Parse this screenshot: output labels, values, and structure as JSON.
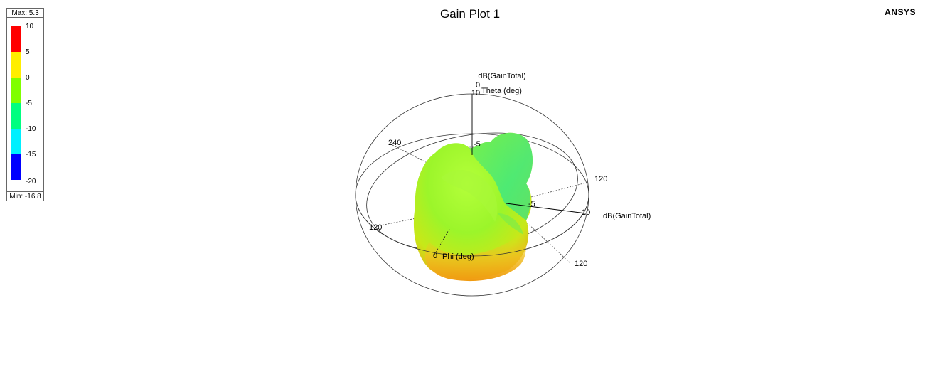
{
  "chart_data": {
    "type": "3d-polar",
    "title": "Gain Plot 1",
    "quantity": "dB(GainTotal)",
    "axes": {
      "theta_label": "Theta (deg)",
      "phi_label": "Phi (deg)",
      "radial_label": "dB(GainTotal)",
      "theta_tick": "0",
      "phi_tick": "0"
    },
    "radial_ticks": [
      "10",
      "-5",
      "-5",
      "10"
    ],
    "angle_ticks": [
      "240",
      "120",
      "120",
      "120"
    ],
    "colorbar": {
      "max_label": "Max: 5.3",
      "min_label": "Min: -16.8",
      "max": 5.3,
      "min": -16.8,
      "levels": [
        10,
        5,
        0,
        -5,
        -10,
        -15,
        -20
      ],
      "level_labels": [
        "10",
        "5",
        "0",
        "-5",
        "-10",
        "-15",
        "-20"
      ],
      "colors": [
        "#ff0000",
        "#ffee00",
        "#80ff00",
        "#00ff80",
        "#00f0ff",
        "#0000ff"
      ]
    }
  },
  "brand": "ANSYS"
}
